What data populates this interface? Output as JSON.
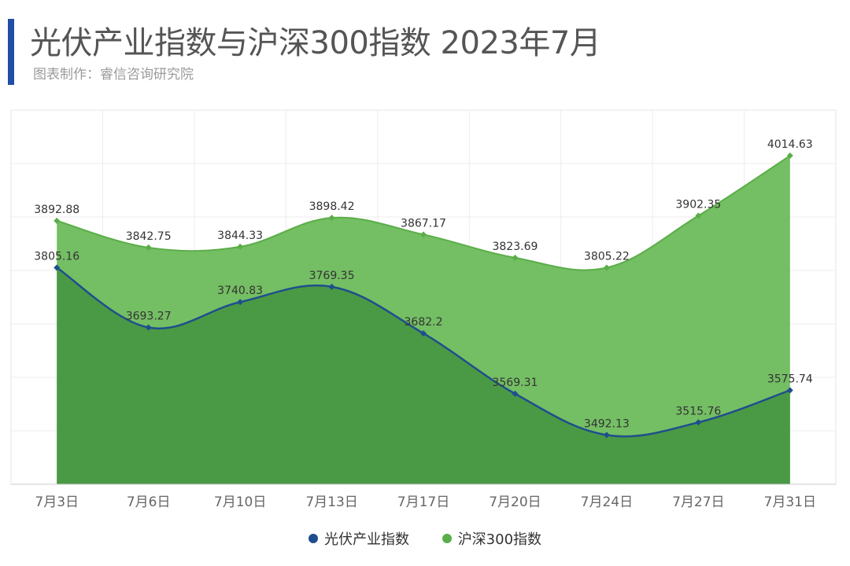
{
  "header": {
    "title": "光伏产业指数与沪深300指数 2023年7月",
    "subtitle": "图表制作：睿信咨询研究院"
  },
  "colors": {
    "accent_bar": "#1f4ea6",
    "series1_line": "#1f4e8c",
    "series1_fill": "#4a9a45",
    "series2_fill": "#6dbb5c",
    "series2_marker": "#5aae48"
  },
  "chart_data": {
    "type": "area",
    "categories": [
      "7月3日",
      "7月6日",
      "7月10日",
      "7月13日",
      "7月17日",
      "7月20日",
      "7月24日",
      "7月27日",
      "7月31日"
    ],
    "series": [
      {
        "name": "光伏产业指数",
        "values": [
          3805.16,
          3693.27,
          3740.83,
          3769.35,
          3682.2,
          3569.31,
          3492.13,
          3515.76,
          3575.74
        ],
        "color": "#1f4e8c"
      },
      {
        "name": "沪深300指数",
        "values": [
          3892.88,
          3842.75,
          3844.33,
          3898.42,
          3867.17,
          3823.69,
          3805.22,
          3902.35,
          4014.63
        ],
        "color": "#5aae48"
      }
    ],
    "ylim": [
      3400,
      4100
    ],
    "grid": true,
    "legend": "bottom",
    "xlabel": "",
    "ylabel": ""
  }
}
